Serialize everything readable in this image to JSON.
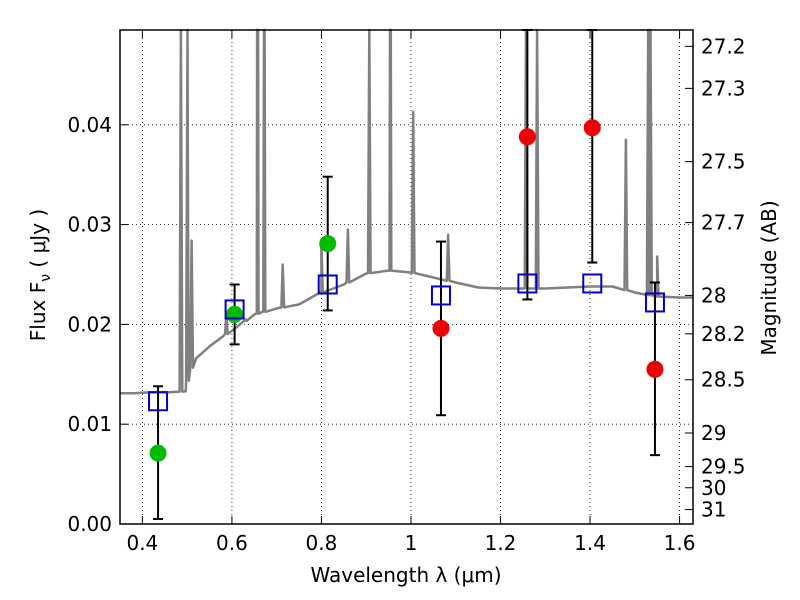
{
  "chart_data": {
    "type": "scatter",
    "xlabel": "Wavelength  λ (μm)",
    "ylabel": "Flux  F",
    "ylabel_sub": "ν",
    "ylabel_unit": "  ( μJy )",
    "y2label": "Magnitude (AB)",
    "xlim": [
      0.35,
      1.63
    ],
    "ylim": [
      0.0,
      0.0495
    ],
    "grid": true,
    "x_ticks": [
      0.4,
      0.6,
      0.8,
      1.0,
      1.2,
      1.4,
      1.6
    ],
    "x_tick_labels": [
      "0.4",
      "0.6",
      "0.8",
      "1",
      "1.2",
      "1.4",
      "1.6"
    ],
    "y_ticks": [
      0.0,
      0.01,
      0.02,
      0.03,
      0.04
    ],
    "y_tick_labels": [
      "0.00",
      "0.01",
      "0.02",
      "0.03",
      "0.04"
    ],
    "mag_ticks": [
      27.2,
      27.3,
      27.5,
      27.7,
      28,
      28.2,
      28.5,
      29,
      29.5,
      30,
      31
    ],
    "mag_tick_labels": [
      "27.2",
      "27.3",
      "27.5",
      "27.7",
      "28",
      "28.2",
      "28.5",
      "29",
      "29.5",
      "30",
      "31"
    ],
    "series": [
      {
        "marker": "circle-green",
        "color": "#00bb00",
        "points": [
          {
            "x": 0.435,
            "y": 0.0071
          },
          {
            "x": 0.606,
            "y": 0.021
          },
          {
            "x": 0.814,
            "y": 0.0281
          }
        ]
      },
      {
        "marker": "circle-red",
        "color": "#ee0000",
        "points": [
          {
            "x": 1.067,
            "y": 0.0196
          },
          {
            "x": 1.26,
            "y": 0.0388
          },
          {
            "x": 1.405,
            "y": 0.0397
          },
          {
            "x": 1.545,
            "y": 0.0155
          }
        ]
      },
      {
        "marker": "open-square-blue",
        "color": "#0000cc",
        "points": [
          {
            "x": 0.435,
            "y": 0.0123
          },
          {
            "x": 0.606,
            "y": 0.0215
          },
          {
            "x": 0.814,
            "y": 0.024
          },
          {
            "x": 1.067,
            "y": 0.0229
          },
          {
            "x": 1.26,
            "y": 0.0241
          },
          {
            "x": 1.405,
            "y": 0.0241
          },
          {
            "x": 1.545,
            "y": 0.0222
          }
        ]
      }
    ],
    "error_bars": [
      {
        "x": 0.435,
        "low": 0.0005,
        "high": 0.0138
      },
      {
        "x": 0.606,
        "low": 0.018,
        "high": 0.024
      },
      {
        "x": 0.814,
        "low": 0.0214,
        "high": 0.0348
      },
      {
        "x": 1.067,
        "low": 0.0109,
        "high": 0.0283
      },
      {
        "x": 1.26,
        "low": 0.0225,
        "high": 0.0495
      },
      {
        "x": 1.405,
        "low": 0.0262,
        "high": 0.0495
      },
      {
        "x": 1.545,
        "low": 0.0069,
        "high": 0.0242
      }
    ],
    "model_spectrum": {
      "color": "#808080",
      "continuum": [
        [
          0.35,
          0.0131
        ],
        [
          0.38,
          0.0131
        ],
        [
          0.42,
          0.0132
        ],
        [
          0.46,
          0.0132
        ],
        [
          0.497,
          0.0133
        ],
        [
          0.503,
          0.015
        ],
        [
          0.52,
          0.0166
        ],
        [
          0.55,
          0.0178
        ],
        [
          0.58,
          0.0188
        ],
        [
          0.61,
          0.0197
        ],
        [
          0.65,
          0.021
        ],
        [
          0.7,
          0.0216
        ],
        [
          0.75,
          0.022
        ],
        [
          0.8,
          0.0232
        ],
        [
          0.85,
          0.024
        ],
        [
          0.9,
          0.0251
        ],
        [
          0.95,
          0.0254
        ],
        [
          1.0,
          0.0252
        ],
        [
          1.05,
          0.0247
        ],
        [
          1.1,
          0.0242
        ],
        [
          1.15,
          0.0237
        ],
        [
          1.2,
          0.0236
        ],
        [
          1.25,
          0.0236
        ],
        [
          1.3,
          0.0236
        ],
        [
          1.35,
          0.0237
        ],
        [
          1.4,
          0.0238
        ],
        [
          1.45,
          0.0238
        ],
        [
          1.5,
          0.0232
        ],
        [
          1.55,
          0.0228
        ],
        [
          1.6,
          0.0227
        ],
        [
          1.63,
          0.0227
        ]
      ],
      "emission_lines": [
        [
          0.4861,
          0.0495
        ],
        [
          0.5007,
          0.0495
        ],
        [
          0.51,
          0.0284
        ],
        [
          0.5876,
          0.021
        ],
        [
          0.63,
          0.0205
        ],
        [
          0.6563,
          0.0495
        ],
        [
          0.6585,
          0.0495
        ],
        [
          0.6716,
          0.0495
        ],
        [
          0.6731,
          0.0495
        ],
        [
          0.7135,
          0.026
        ],
        [
          0.8,
          0.028
        ],
        [
          0.859,
          0.0295
        ],
        [
          0.9069,
          0.0495
        ],
        [
          0.9531,
          0.0495
        ],
        [
          0.955,
          0.0495
        ],
        [
          1.0049,
          0.0413
        ],
        [
          1.083,
          0.029
        ],
        [
          1.2818,
          0.0495
        ],
        [
          1.257,
          0.0495
        ],
        [
          1.48,
          0.0385
        ],
        [
          1.53,
          0.0495
        ],
        [
          1.535,
          0.0495
        ],
        [
          1.55,
          0.0268
        ]
      ]
    }
  }
}
